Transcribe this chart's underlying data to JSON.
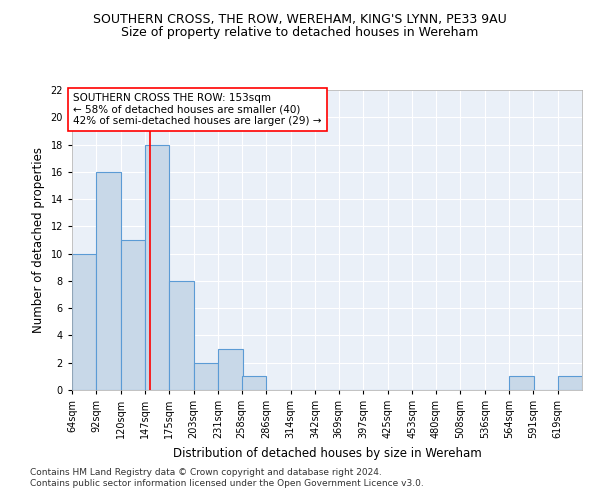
{
  "title": "SOUTHERN CROSS, THE ROW, WEREHAM, KING'S LYNN, PE33 9AU",
  "subtitle": "Size of property relative to detached houses in Wereham",
  "xlabel": "Distribution of detached houses by size in Wereham",
  "ylabel": "Number of detached properties",
  "bins": [
    64,
    92,
    120,
    147,
    175,
    203,
    231,
    258,
    286,
    314,
    342,
    369,
    397,
    425,
    453,
    480,
    508,
    536,
    564,
    591,
    619
  ],
  "counts": [
    10,
    16,
    11,
    18,
    8,
    2,
    3,
    1,
    0,
    0,
    0,
    0,
    0,
    0,
    0,
    0,
    0,
    0,
    1,
    0,
    1
  ],
  "bar_color": "#c8d8e8",
  "bar_edge_color": "#5b9bd5",
  "ref_line_x": 153,
  "ref_line_color": "red",
  "annotation_text": "SOUTHERN CROSS THE ROW: 153sqm\n← 58% of detached houses are smaller (40)\n42% of semi-detached houses are larger (29) →",
  "annotation_box_color": "white",
  "annotation_box_edge": "red",
  "ylim": [
    0,
    22
  ],
  "yticks": [
    0,
    2,
    4,
    6,
    8,
    10,
    12,
    14,
    16,
    18,
    20,
    22
  ],
  "bg_color": "#eaf0f8",
  "footer": "Contains HM Land Registry data © Crown copyright and database right 2024.\nContains public sector information licensed under the Open Government Licence v3.0.",
  "title_fontsize": 9,
  "subtitle_fontsize": 9,
  "xlabel_fontsize": 8.5,
  "ylabel_fontsize": 8.5,
  "tick_fontsize": 7,
  "annotation_fontsize": 7.5,
  "footer_fontsize": 6.5
}
